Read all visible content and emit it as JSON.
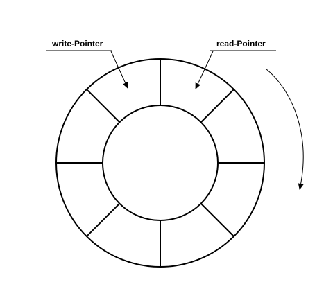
{
  "diagram": {
    "write_pointer_label": "write-Pointer",
    "read_pointer_label": "read-Pointer",
    "segment_count": 8,
    "stroke_color": "#000000",
    "background_color": "#ffffff"
  }
}
